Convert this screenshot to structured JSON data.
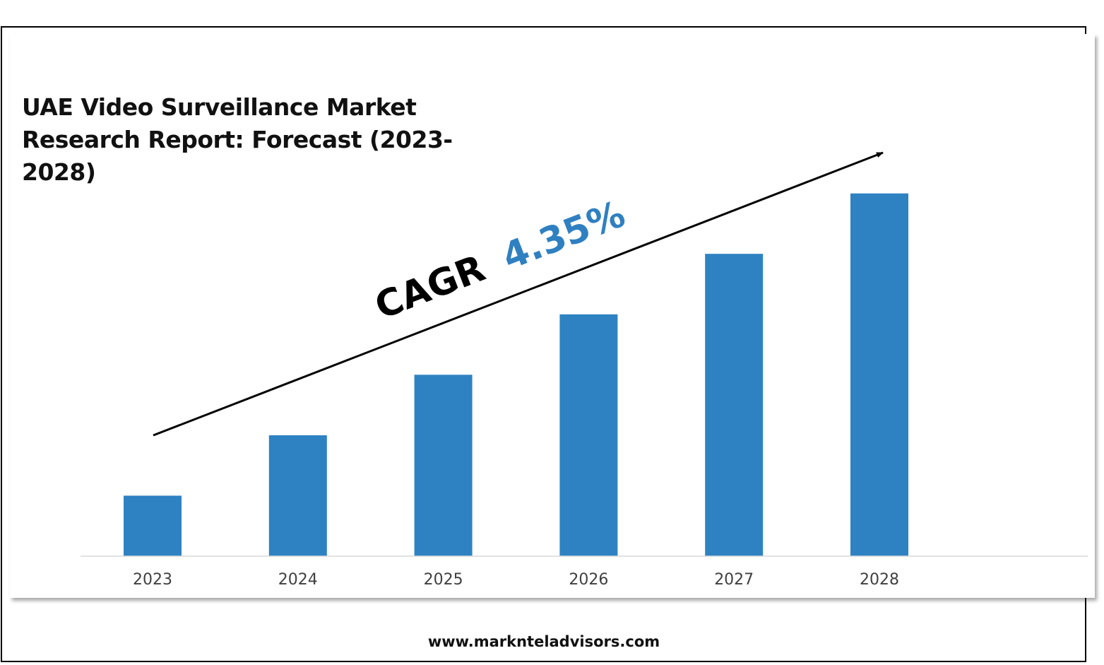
{
  "title": "UAE Video Surveillance Market Research Report: Forecast (2023-2028)",
  "annotation": {
    "label": "CAGR",
    "value": "4.35%",
    "label_color": "#000000",
    "value_color": "#2f80c1"
  },
  "footer": {
    "website": "www.marknteladvisors.com"
  },
  "colors": {
    "bar": "#2e82c2",
    "axis_line": "#d9d9d9",
    "tick_label": "#404040",
    "arrow": "#000000"
  },
  "chart_data": {
    "type": "bar",
    "title": "UAE Video Surveillance Market Research Report: Forecast (2023-2028)",
    "xlabel": "",
    "ylabel": "",
    "categories": [
      "2023",
      "2024",
      "2025",
      "2026",
      "2027",
      "2028"
    ],
    "values": [
      1.0,
      2.0,
      3.0,
      4.0,
      5.0,
      6.0
    ],
    "ylim": [
      0,
      6.3
    ],
    "grid": false,
    "legend": "none",
    "annotations": [
      "CAGR 4.35%"
    ]
  }
}
